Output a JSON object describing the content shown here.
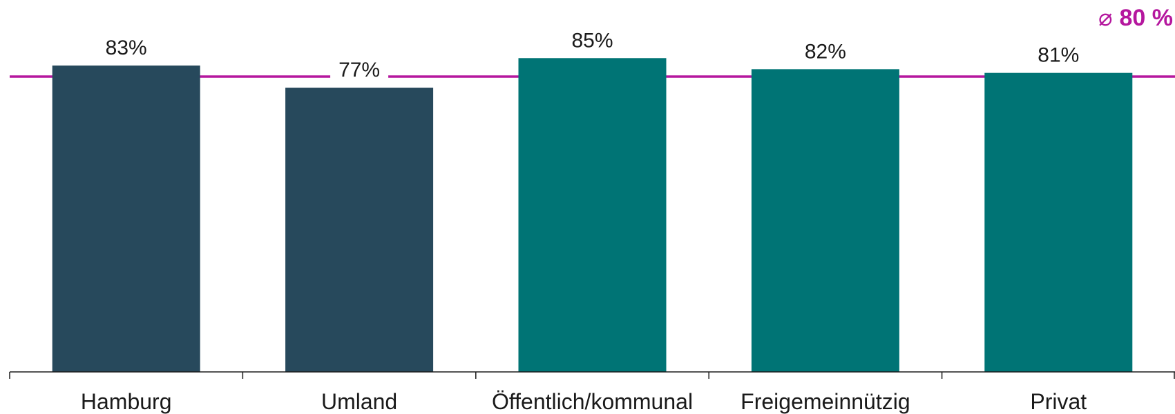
{
  "chart_data": {
    "type": "bar",
    "categories": [
      "Hamburg",
      "Umland",
      "Öffentlich/kommunal",
      "Freigemeinnützig",
      "Privat"
    ],
    "values": [
      83,
      77,
      85,
      82,
      81
    ],
    "value_labels": [
      "83%",
      "77%",
      "85%",
      "82%",
      "81%"
    ],
    "bar_colors": [
      "#27495c",
      "#27495c",
      "#007475",
      "#007475",
      "#007475"
    ],
    "ylim": [
      0,
      100
    ],
    "average": {
      "value": 80,
      "symbol": "⌀",
      "label": "80 %",
      "color": "#b5179e"
    },
    "grid": false,
    "title": "",
    "xlabel": "",
    "ylabel": ""
  }
}
